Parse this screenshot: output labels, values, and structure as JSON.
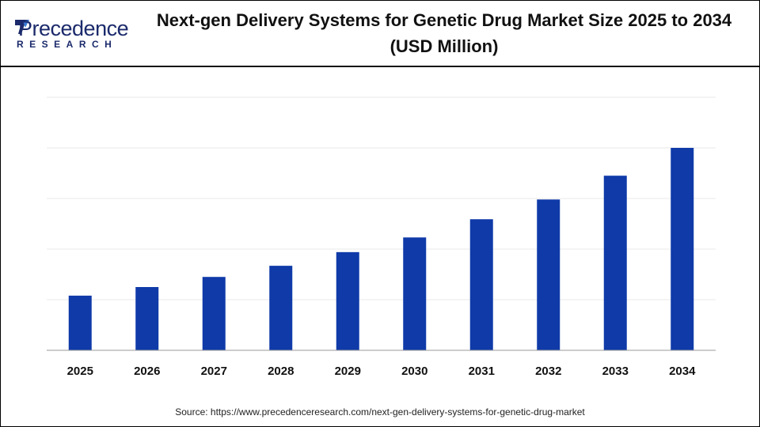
{
  "logo": {
    "brand": "Precedence",
    "sub": "RESEARCH"
  },
  "title": "Next-gen Delivery Systems for Genetic Drug Market  Size 2025 to 2034 (USD Million)",
  "source": "Source: https://www.precedenceresearch.com/next-gen-delivery-systems-for-genetic-drug-market",
  "chart_data": {
    "type": "bar",
    "title": "Next-gen Delivery Systems for Genetic Drug Market  Size 2025 to 2034 (USD Million)",
    "categories": [
      "2025",
      "2026",
      "2027",
      "2028",
      "2029",
      "2030",
      "2031",
      "2032",
      "2033",
      "2034"
    ],
    "values": [
      1.08,
      1.25,
      1.45,
      1.67,
      1.94,
      2.23,
      2.59,
      2.98,
      3.45,
      4.0
    ],
    "ylim": [
      0,
      5
    ],
    "ytick_labels": "none",
    "grid": true,
    "legend": "none",
    "bar_color": "#0f3aa8"
  }
}
